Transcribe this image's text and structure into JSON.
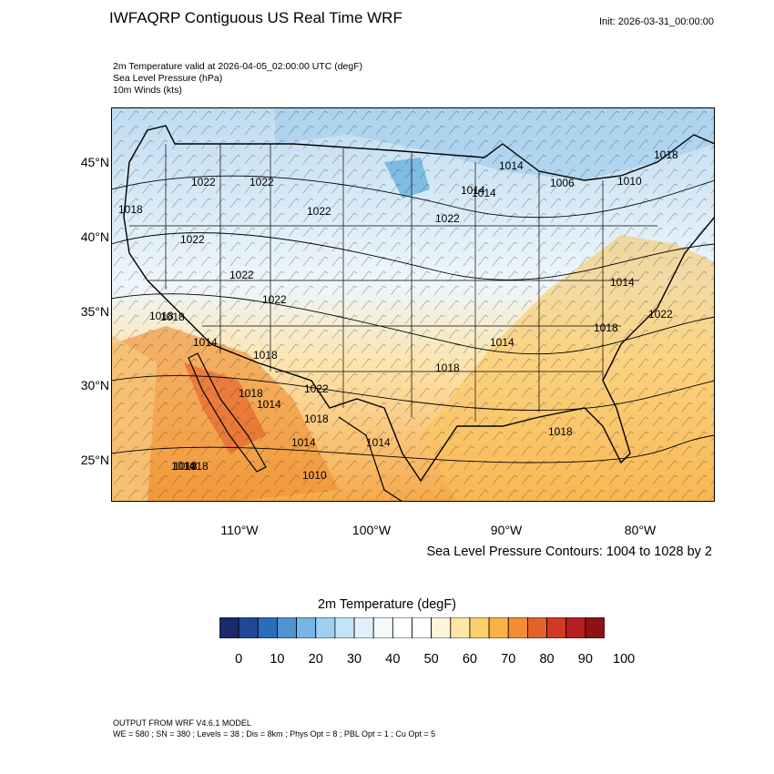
{
  "title": "IWFAQRP Contiguous US Real Time WRF",
  "init": "Init: 2026-03-31_00:00:00",
  "fields": [
    "2m Temperature valid at 2026-04-05_02:00:00 UTC   (degF)",
    "Sea Level Pressure   (hPa)",
    "10m Winds   (kts)"
  ],
  "map": {
    "lat_labels": [
      "45°N",
      "40°N",
      "35°N",
      "30°N",
      "25°N"
    ],
    "lon_labels": [
      "110°W",
      "100°W",
      "90°W",
      "80°W"
    ],
    "slp_labels": [
      "1018",
      "1022",
      "1022",
      "1022",
      "1022",
      "1022",
      "1022",
      "1022",
      "1018",
      "1014",
      "1018",
      "1018",
      "1014",
      "1014",
      "1014",
      "1018",
      "1022",
      "1018",
      "1014",
      "1014",
      "1010",
      "1014",
      "1014",
      "1006",
      "1010",
      "1018",
      "1018",
      "1014",
      "1018",
      "1022",
      "1018",
      "1018",
      "1014",
      "1018"
    ],
    "colors": {
      "cold": "#5aa9dc",
      "cool": "#cbe6f7",
      "neutral": "#ffffff",
      "warm": "#f9c25a",
      "hot": "#ef9033",
      "very_hot": "#e35d29"
    }
  },
  "contour_note": "Sea Level Pressure Contours: 1004 to 1028 by 2",
  "colorbar": {
    "title": "2m Temperature  (degF)",
    "colors": [
      "#1a2a6b",
      "#214797",
      "#2d6bbb",
      "#4f94d1",
      "#75b6e5",
      "#9fd0f2",
      "#c3e3f7",
      "#e0f0fa",
      "#f4f9fc",
      "#ffffff",
      "#ffffff",
      "#fff4d8",
      "#fde6a6",
      "#fbcf6d",
      "#f8b245",
      "#f08d35",
      "#e3612a",
      "#cf3a23",
      "#b51e1f",
      "#8c1214"
    ],
    "ticks": [
      "0",
      "10",
      "20",
      "30",
      "40",
      "50",
      "60",
      "70",
      "80",
      "90",
      "100"
    ]
  },
  "model_line": "OUTPUT FROM WRF V4.6.1 MODEL",
  "model_params": "WE = 580 ; SN = 380 ; Levels = 38 ; Dis = 8km ; Phys Opt = 8 ; PBL Opt = 1 ; Cu Opt = 5"
}
